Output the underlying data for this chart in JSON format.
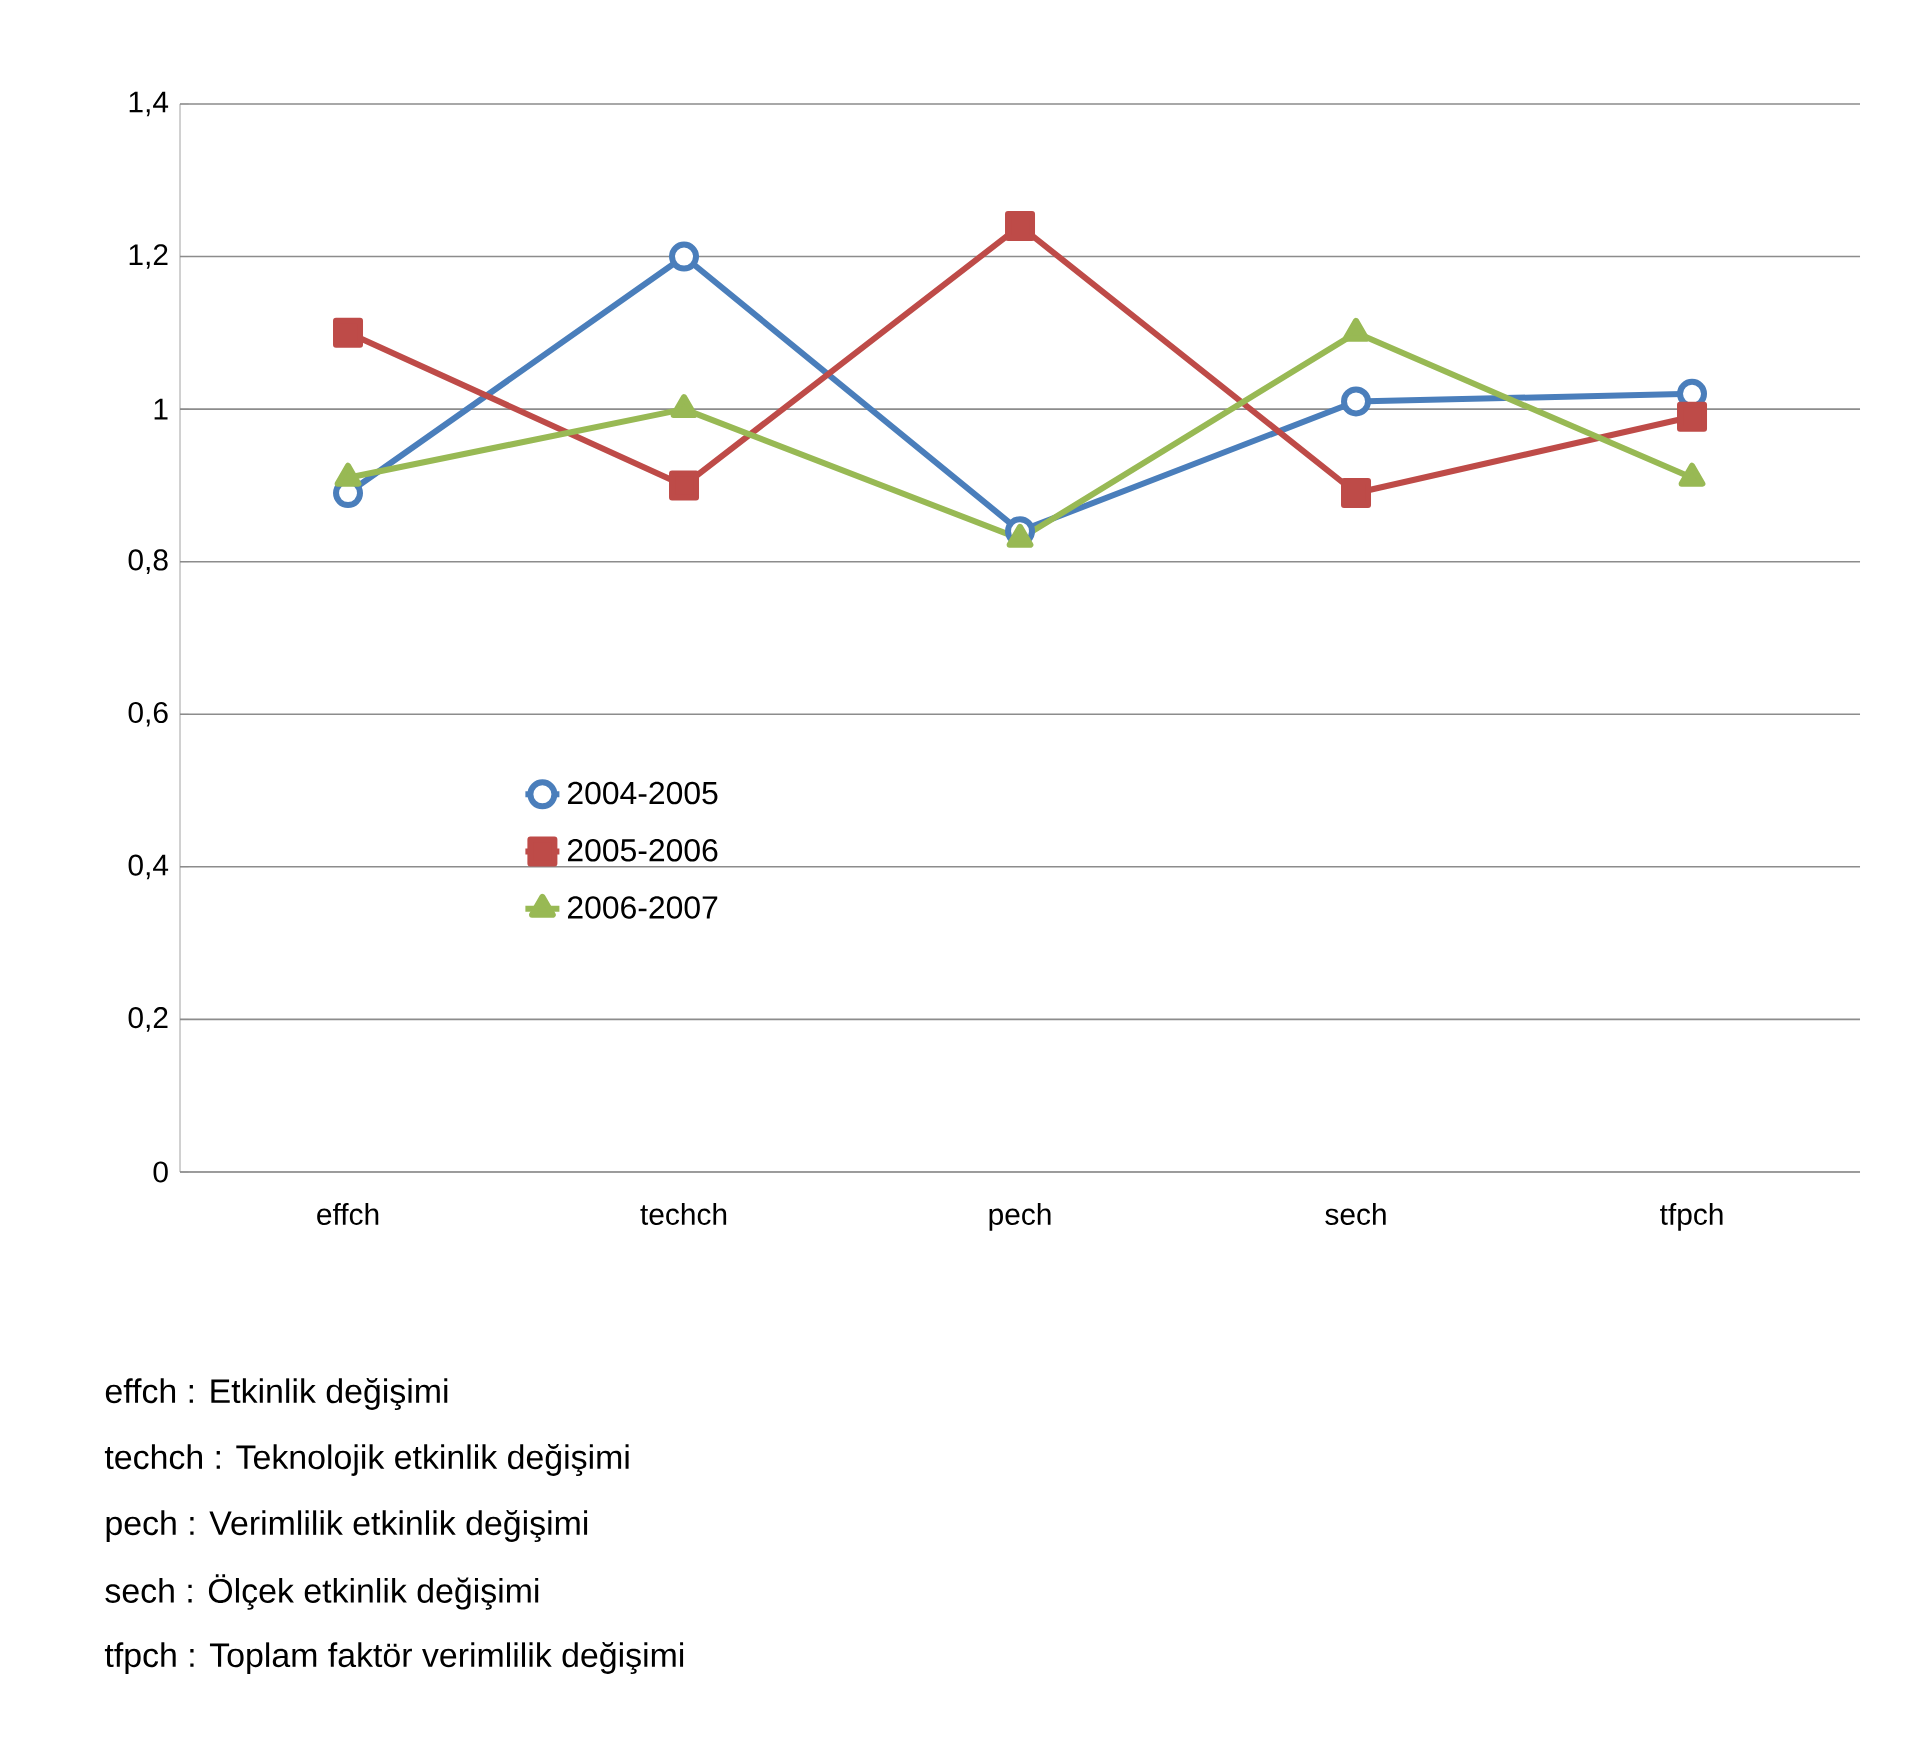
{
  "chart_data": {
    "type": "line",
    "categories": [
      "effch",
      "techch",
      "pech",
      "sech",
      "tfpch"
    ],
    "series": [
      {
        "name": "2004-2005",
        "color": "#4a7ebb",
        "marker": "circle",
        "values": [
          0.89,
          1.2,
          0.84,
          1.01,
          1.02
        ]
      },
      {
        "name": "2005-2006",
        "color": "#be4b48",
        "marker": "square",
        "values": [
          1.1,
          0.9,
          1.24,
          0.89,
          0.99
        ]
      },
      {
        "name": "2006-2007",
        "color": "#98b954",
        "marker": "triangle",
        "values": [
          0.91,
          1.0,
          0.83,
          1.1,
          0.91
        ]
      }
    ],
    "ylim": [
      0,
      1.4
    ],
    "yticks": [
      {
        "value": 0,
        "label": "0"
      },
      {
        "value": 0.2,
        "label": "0,2"
      },
      {
        "value": 0.4,
        "label": "0,4"
      },
      {
        "value": 0.6,
        "label": "0,6"
      },
      {
        "value": 0.8,
        "label": "0,8"
      },
      {
        "value": 1,
        "label": "1"
      },
      {
        "value": 1.2,
        "label": "1,2"
      },
      {
        "value": 1.4,
        "label": "1,4"
      }
    ],
    "grid": "y",
    "legend": "left",
    "line_style": "solid",
    "annotations": [
      "effch    : Etkinlik değişimi",
      "techch : Teknolojik etkinlik değişimi",
      "pech     : Verimlilik etkinlik değişimi",
      "sech     : Ölçek etkinlik değişimi",
      "tfpch    : Toplam faktör verimlilik değişimi"
    ]
  }
}
